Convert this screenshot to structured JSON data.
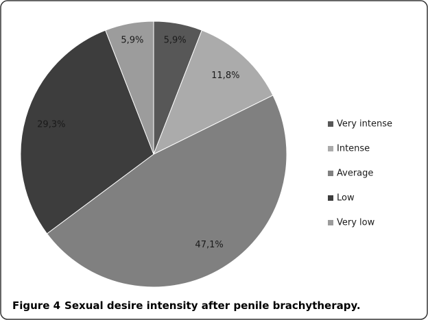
{
  "chart_data": {
    "type": "pie",
    "categories": [
      "Very intense",
      "Intense",
      "Average",
      "Low",
      "Very low"
    ],
    "values": [
      5.9,
      11.8,
      47.1,
      29.3,
      5.9
    ],
    "value_labels": [
      "5,9%",
      "11,8%",
      "47,1%",
      "29,3%",
      "5,9%"
    ],
    "colors": [
      "#575757",
      "#ababab",
      "#808080",
      "#3d3d3d",
      "#9c9c9c"
    ],
    "legend": "right",
    "caption": {
      "label": "Figure 4",
      "text": "Sexual desire intensity after penile brachytherapy."
    }
  }
}
